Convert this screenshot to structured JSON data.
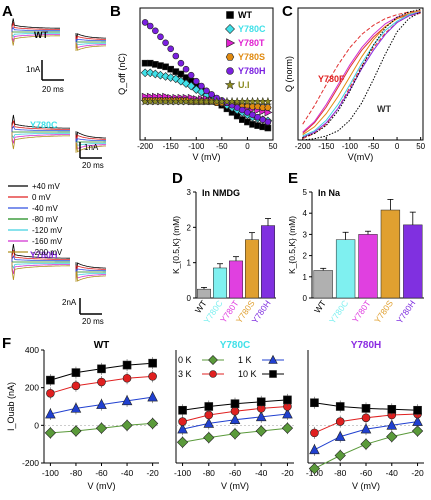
{
  "panels": {
    "A": {
      "letter": "A",
      "rows": [
        {
          "name": "WT",
          "color": "#000000"
        },
        {
          "name": "Y780C",
          "color": "#40E0E8"
        },
        {
          "name": "Y780H",
          "color": "#8A2BE2"
        }
      ],
      "scale_bars": [
        {
          "current": "1nA",
          "time": "20 ms"
        },
        {
          "current": "1nA",
          "time": "20 ms"
        },
        {
          "current": "2nA",
          "time": "20 ms"
        }
      ],
      "voltage_legend": [
        {
          "label": "+40 mV",
          "color": "#000000"
        },
        {
          "label": "0 mV",
          "color": "#e02020"
        },
        {
          "label": "-40 mV",
          "color": "#3050e0"
        },
        {
          "label": "-80 mV",
          "color": "#1a8a1a"
        },
        {
          "label": "-120 mV",
          "color": "#40d0e0"
        },
        {
          "label": "-160 mV",
          "color": "#d030d0"
        },
        {
          "label": "-200 mV",
          "color": "#b09020"
        }
      ]
    },
    "B": {
      "letter": "B"
    },
    "C": {
      "letter": "C",
      "lbl_y780f": "Y780F",
      "lbl_wt": "WT"
    },
    "D": {
      "letter": "D"
    },
    "E": {
      "letter": "E"
    },
    "F": {
      "letter": "F"
    }
  },
  "chart_data": [
    {
      "id": "B",
      "type": "scatter",
      "xlabel": "V (mV)",
      "ylabel": "Q_off (nC)",
      "xlim": [
        -210,
        50
      ],
      "ylim": [
        -3,
        8
      ],
      "xticks": [
        -200,
        -150,
        -100,
        -50,
        0,
        50
      ],
      "yticks": [
        -2,
        0,
        2,
        4,
        6,
        8
      ],
      "legend_position": "top-right",
      "series": [
        {
          "name": "WT",
          "color": "#000000",
          "marker": "square",
          "x": [
            -200,
            -190,
            -180,
            -170,
            -160,
            -150,
            -140,
            -130,
            -120,
            -110,
            -100,
            -90,
            -80,
            -70,
            -60,
            -50,
            -40,
            -30,
            -20,
            -10,
            0,
            10,
            20,
            30,
            40
          ],
          "y": [
            3.4,
            3.4,
            3.3,
            3.2,
            3.1,
            2.9,
            2.7,
            2.5,
            2.2,
            1.9,
            1.5,
            1.2,
            0.8,
            0.5,
            0.2,
            -0.1,
            -0.4,
            -0.7,
            -1.0,
            -1.3,
            -1.5,
            -1.7,
            -1.8,
            -1.9,
            -2.0
          ]
        },
        {
          "name": "Y780C",
          "color": "#40E0E8",
          "marker": "diamond",
          "x": [
            -200,
            -190,
            -180,
            -170,
            -160,
            -150,
            -140,
            -130,
            -120,
            -110,
            -100,
            -90,
            -80,
            -70,
            -60,
            -50,
            -40,
            -30,
            -20,
            -10,
            0,
            10,
            20,
            30,
            40
          ],
          "y": [
            2.6,
            2.6,
            2.5,
            2.4,
            2.3,
            2.2,
            2.1,
            1.9,
            1.7,
            1.5,
            1.2,
            1.0,
            0.7,
            0.5,
            0.3,
            0.1,
            -0.1,
            -0.3,
            -0.5,
            -0.7,
            -0.9,
            -1.1,
            -1.2,
            -1.3,
            -1.4
          ]
        },
        {
          "name": "Y780T",
          "color": "#E020D0",
          "marker": "triangle-right",
          "x": [
            -200,
            -190,
            -180,
            -170,
            -160,
            -150,
            -140,
            -130,
            -120,
            -110,
            -100,
            -90,
            -80,
            -70,
            -60,
            -50,
            -40,
            -30,
            -20,
            -10,
            0,
            10,
            20,
            30,
            40
          ],
          "y": [
            0.6,
            0.6,
            0.6,
            0.6,
            0.6,
            0.5,
            0.5,
            0.5,
            0.5,
            0.5,
            0.4,
            0.4,
            0.4,
            0.3,
            0.3,
            0.2,
            0.1,
            0.0,
            -0.1,
            -0.2,
            -0.3,
            -0.4,
            -0.5,
            -0.6,
            -0.7
          ]
        },
        {
          "name": "Y780S",
          "color": "#E08A10",
          "marker": "hexagon",
          "x": [
            -200,
            -190,
            -180,
            -170,
            -160,
            -150,
            -140,
            -130,
            -120,
            -110,
            -100,
            -90,
            -80,
            -70,
            -60,
            -50,
            -40,
            -30,
            -20,
            -10,
            0,
            10,
            20,
            30,
            40
          ],
          "y": [
            0.3,
            0.3,
            0.3,
            0.3,
            0.3,
            0.3,
            0.3,
            0.3,
            0.3,
            0.2,
            0.2,
            0.2,
            0.2,
            0.2,
            0.1,
            0.1,
            0.1,
            0.0,
            0.0,
            -0.1,
            -0.1,
            -0.2,
            -0.2,
            -0.3,
            -0.3
          ]
        },
        {
          "name": "Y780H",
          "color": "#7A20E0",
          "marker": "circle",
          "x": [
            -200,
            -190,
            -180,
            -170,
            -160,
            -150,
            -140,
            -130,
            -120,
            -110,
            -100,
            -90,
            -80,
            -70,
            -60,
            -50,
            -40,
            -30,
            -20,
            -10,
            0,
            10,
            20,
            30,
            40
          ],
          "y": [
            6.8,
            6.5,
            6.1,
            5.6,
            5.1,
            4.6,
            4.0,
            3.4,
            2.9,
            2.4,
            1.9,
            1.5,
            1.1,
            0.8,
            0.5,
            0.3,
            0.1,
            -0.1,
            -0.3,
            -0.5,
            -0.7,
            -0.9,
            -1.1,
            -1.3,
            -1.5
          ]
        },
        {
          "name": "U.I",
          "color": "#8B8B20",
          "marker": "star",
          "x": [
            -200,
            -190,
            -180,
            -170,
            -160,
            -150,
            -140,
            -130,
            -120,
            -110,
            -100,
            -90,
            -80,
            -70,
            -60,
            -50,
            -40,
            -30,
            -20,
            -10,
            0,
            10,
            20,
            30,
            40
          ],
          "y": [
            0.2,
            0.2,
            0.2,
            0.2,
            0.2,
            0.2,
            0.2,
            0.2,
            0.2,
            0.2,
            0.2,
            0.2,
            0.2,
            0.2,
            0.2,
            0.2,
            0.2,
            0.2,
            0.2,
            0.2,
            0.2,
            0.2,
            0.2,
            0.2,
            0.2
          ]
        }
      ]
    },
    {
      "id": "C",
      "type": "line",
      "xlabel": "V(mV)",
      "ylabel": "Q (norm)",
      "xlim": [
        -210,
        55
      ],
      "ylim": [
        0,
        1
      ],
      "xticks": [
        -200,
        -150,
        -100,
        -50,
        0,
        50
      ],
      "series": [
        {
          "color": "#E03030",
          "style": "dashed",
          "x": [
            -200,
            -175,
            -150,
            -125,
            -100,
            -75,
            -50,
            -25,
            0,
            25,
            50
          ],
          "y": [
            0.12,
            0.26,
            0.42,
            0.57,
            0.7,
            0.8,
            0.87,
            0.92,
            0.95,
            0.97,
            0.98
          ]
        },
        {
          "color": "#E03030",
          "style": "solid",
          "x": [
            -200,
            -175,
            -150,
            -125,
            -100,
            -75,
            -50,
            -25,
            0,
            25,
            50
          ],
          "y": [
            0.05,
            0.13,
            0.25,
            0.4,
            0.55,
            0.68,
            0.78,
            0.86,
            0.92,
            0.95,
            0.97
          ]
        },
        {
          "color": "#E03030",
          "style": "dashed",
          "x": [
            -200,
            -175,
            -150,
            -125,
            -100,
            -75,
            -50,
            -25,
            0,
            25,
            50
          ],
          "y": [
            0.01,
            0.05,
            0.12,
            0.24,
            0.4,
            0.56,
            0.7,
            0.81,
            0.89,
            0.94,
            0.96
          ]
        },
        {
          "color": "#40D0E0",
          "style": "solid",
          "x": [
            -200,
            -175,
            -150,
            -125,
            -100,
            -75,
            -50,
            -25,
            0,
            25,
            50
          ],
          "y": [
            0.03,
            0.07,
            0.15,
            0.27,
            0.42,
            0.58,
            0.72,
            0.83,
            0.9,
            0.95,
            0.97
          ]
        },
        {
          "color": "#D030D0",
          "style": "solid",
          "x": [
            -200,
            -175,
            -150,
            -125,
            -100,
            -75,
            -50,
            -25,
            0,
            25,
            50
          ],
          "y": [
            0.06,
            0.14,
            0.27,
            0.42,
            0.57,
            0.7,
            0.8,
            0.88,
            0.93,
            0.96,
            0.98
          ]
        },
        {
          "color": "#8A2BE2",
          "style": "solid",
          "x": [
            -200,
            -175,
            -150,
            -125,
            -100,
            -75,
            -50,
            -25,
            0,
            25,
            50
          ],
          "y": [
            0.02,
            0.06,
            0.13,
            0.24,
            0.38,
            0.54,
            0.68,
            0.8,
            0.89,
            0.94,
            0.97
          ]
        },
        {
          "color": "#E08A10",
          "style": "solid",
          "x": [
            -200,
            -175,
            -150,
            -125,
            -100,
            -75,
            -50,
            -25,
            0,
            25,
            50
          ],
          "y": [
            0.04,
            0.1,
            0.2,
            0.33,
            0.48,
            0.63,
            0.76,
            0.86,
            0.92,
            0.96,
            0.98
          ]
        },
        {
          "color": "#000000",
          "style": "dotted",
          "x": [
            -200,
            -175,
            -150,
            -125,
            -100,
            -75,
            -50,
            -25,
            0,
            25,
            50
          ],
          "y": [
            0.0,
            0.01,
            0.03,
            0.07,
            0.15,
            0.28,
            0.46,
            0.65,
            0.82,
            0.92,
            0.97
          ]
        },
        {
          "color": "#000000",
          "style": "dotted",
          "x": [
            -200,
            -175,
            -150,
            -125,
            -100,
            -75,
            -50,
            -25,
            0,
            25,
            50
          ],
          "y": [
            0.02,
            0.05,
            0.11,
            0.22,
            0.37,
            0.55,
            0.72,
            0.85,
            0.93,
            0.97,
            0.99
          ]
        }
      ]
    },
    {
      "id": "D",
      "type": "bar",
      "title": "In NMDG",
      "ylabel": "K_{0.5,K} (mM)",
      "ylim": [
        0,
        3
      ],
      "yticks": [
        0,
        1,
        2,
        3
      ],
      "categories": [
        "WT",
        "Y780C",
        "Y780T",
        "Y780S",
        "Y780H"
      ],
      "colors": [
        "#B0B0B0",
        "#7FF0F0",
        "#E040E0",
        "#E0A030",
        "#8030E0"
      ],
      "values": [
        0.25,
        0.85,
        1.05,
        1.65,
        2.05
      ],
      "errors": [
        0.05,
        0.12,
        0.12,
        0.2,
        0.2
      ]
    },
    {
      "id": "E",
      "type": "bar",
      "title": "In Na",
      "ylabel": "K_{0.5,K} (mM)",
      "ylim": [
        0,
        5
      ],
      "yticks": [
        0,
        1,
        2,
        3,
        4,
        5
      ],
      "categories": [
        "WT",
        "Y780C",
        "Y780T",
        "Y780S",
        "Y780H"
      ],
      "colors": [
        "#B0B0B0",
        "#7FF0F0",
        "#E040E0",
        "#E0A030",
        "#8030E0"
      ],
      "values": [
        1.3,
        2.75,
        3.0,
        4.15,
        3.45
      ],
      "errors": [
        0.1,
        0.35,
        0.15,
        0.5,
        0.6
      ]
    },
    {
      "id": "F1",
      "type": "line",
      "title": "WT",
      "xlabel": "V (mV)",
      "ylabel": "I_Ouab (nA)",
      "xlim": [
        -105,
        -15
      ],
      "ylim": [
        -200,
        400
      ],
      "xticks": [
        -100,
        -80,
        -60,
        -40,
        -20
      ],
      "yticks": [
        -200,
        0,
        200,
        400
      ],
      "series": [
        {
          "name": "0 K",
          "color": "#5A9A3A",
          "marker": "diamond",
          "x": [
            -100,
            -80,
            -60,
            -40,
            -20
          ],
          "y": [
            -40,
            -30,
            -15,
            0,
            10
          ]
        },
        {
          "name": "1 K",
          "color": "#2040D0",
          "marker": "triangle",
          "x": [
            -100,
            -80,
            -60,
            -40,
            -20
          ],
          "y": [
            60,
            90,
            110,
            130,
            150
          ]
        },
        {
          "name": "3 K",
          "color": "#E02020",
          "marker": "circle",
          "x": [
            -100,
            -80,
            -60,
            -40,
            -20
          ],
          "y": [
            170,
            210,
            230,
            250,
            260
          ]
        },
        {
          "name": "10 K",
          "color": "#000000",
          "marker": "square",
          "x": [
            -100,
            -80,
            -60,
            -40,
            -20
          ],
          "y": [
            240,
            280,
            300,
            320,
            330
          ]
        }
      ]
    },
    {
      "id": "F2",
      "type": "line",
      "title": "Y780C",
      "xlabel": "V (mV)",
      "xlim": [
        -105,
        -15
      ],
      "ylim": [
        -200,
        400
      ],
      "xticks": [
        -100,
        -80,
        -60,
        -40,
        -20
      ],
      "legend_position": "top",
      "series": [
        {
          "name": "0 K",
          "color": "#5A9A3A",
          "marker": "diamond",
          "x": [
            -100,
            -80,
            -60,
            -40,
            -20
          ],
          "y": [
            -90,
            -65,
            -45,
            -30,
            -15
          ]
        },
        {
          "name": "1 K",
          "color": "#2040D0",
          "marker": "triangle",
          "x": [
            -100,
            -80,
            -60,
            -40,
            -20
          ],
          "y": [
            -20,
            10,
            30,
            45,
            60
          ]
        },
        {
          "name": "3 K",
          "color": "#E02020",
          "marker": "circle",
          "x": [
            -100,
            -80,
            -60,
            -40,
            -20
          ],
          "y": [
            20,
            55,
            75,
            90,
            100
          ]
        },
        {
          "name": "10 K",
          "color": "#000000",
          "marker": "square",
          "x": [
            -100,
            -80,
            -60,
            -40,
            -20
          ],
          "y": [
            80,
            100,
            115,
            125,
            135
          ]
        }
      ]
    },
    {
      "id": "F3",
      "type": "line",
      "title": "Y780H",
      "xlabel": "V (mV)",
      "xlim": [
        -105,
        -15
      ],
      "ylim": [
        -200,
        400
      ],
      "xticks": [
        -100,
        -80,
        -60,
        -40,
        -20
      ],
      "series": [
        {
          "name": "0 K",
          "color": "#5A9A3A",
          "marker": "diamond",
          "x": [
            -100,
            -80,
            -60,
            -40,
            -20
          ],
          "y": [
            -230,
            -160,
            -100,
            -60,
            -30
          ]
        },
        {
          "name": "1 K",
          "color": "#2040D0",
          "marker": "triangle",
          "x": [
            -100,
            -80,
            -60,
            -40,
            -20
          ],
          "y": [
            -130,
            -60,
            -20,
            0,
            20
          ]
        },
        {
          "name": "3 K",
          "color": "#E02020",
          "marker": "circle",
          "x": [
            -100,
            -80,
            -60,
            -40,
            -20
          ],
          "y": [
            -40,
            20,
            40,
            55,
            60
          ]
        },
        {
          "name": "10 K",
          "color": "#000000",
          "marker": "square",
          "x": [
            -100,
            -80,
            -60,
            -40,
            -20
          ],
          "y": [
            120,
            100,
            90,
            85,
            80
          ]
        }
      ]
    }
  ]
}
